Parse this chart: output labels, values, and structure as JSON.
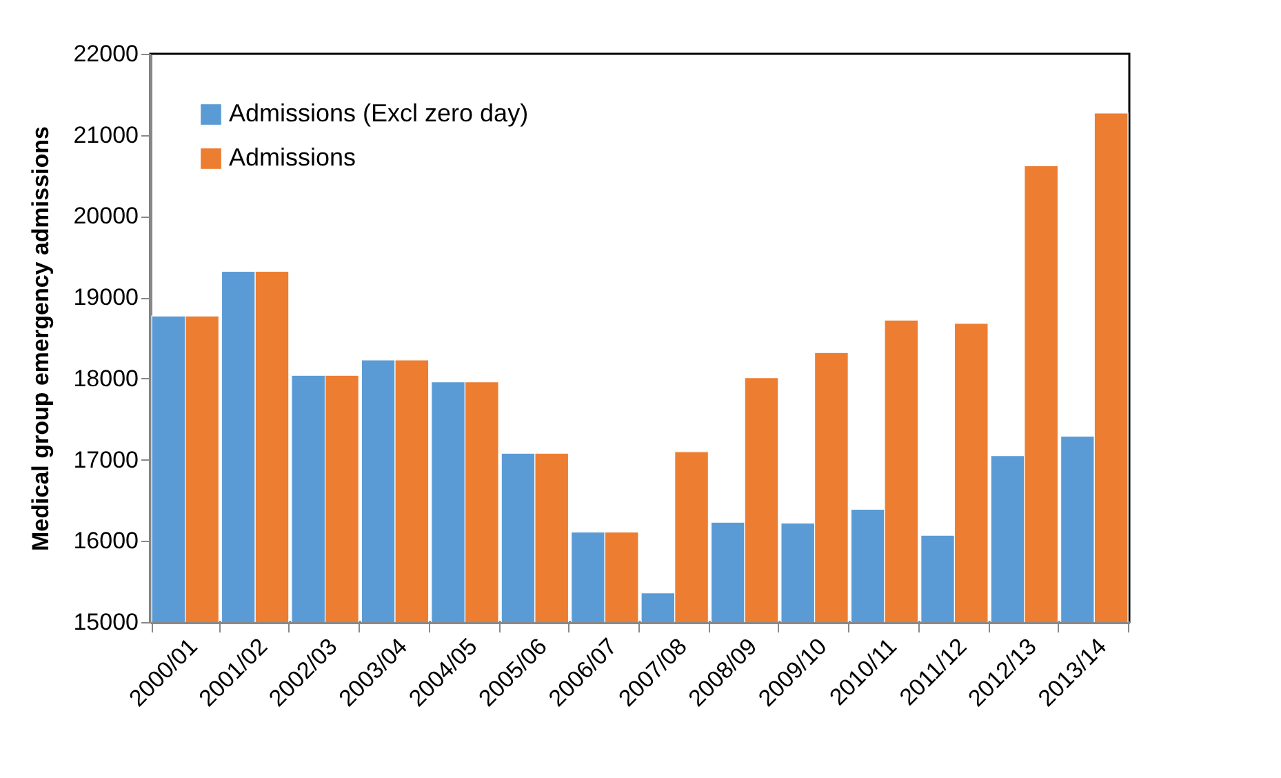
{
  "chart_data": {
    "type": "bar",
    "ylabel": "Medical group emergency admissions",
    "categories": [
      "2000/01",
      "2001/02",
      "2002/03",
      "2003/04",
      "2004/05",
      "2005/06",
      "2006/07",
      "2007/08",
      "2008/09",
      "2009/10",
      "2010/11",
      "2011/12",
      "2012/13",
      "2013/14"
    ],
    "series": [
      {
        "name": "Admissions (Excl zero day)",
        "color": "#5b9bd5",
        "values": [
          18770,
          19320,
          18040,
          18230,
          17960,
          17080,
          16110,
          15360,
          16230,
          16220,
          16390,
          16070,
          17050,
          17290
        ]
      },
      {
        "name": "Admissions",
        "color": "#ed7d31",
        "values": [
          18770,
          19320,
          18040,
          18230,
          17960,
          17080,
          16110,
          17100,
          18010,
          18320,
          18720,
          18680,
          20620,
          21270
        ]
      }
    ],
    "ylim": [
      15000,
      22000
    ],
    "yticks": [
      15000,
      16000,
      17000,
      18000,
      19000,
      20000,
      21000,
      22000
    ],
    "grid": false,
    "legend": "top left"
  }
}
